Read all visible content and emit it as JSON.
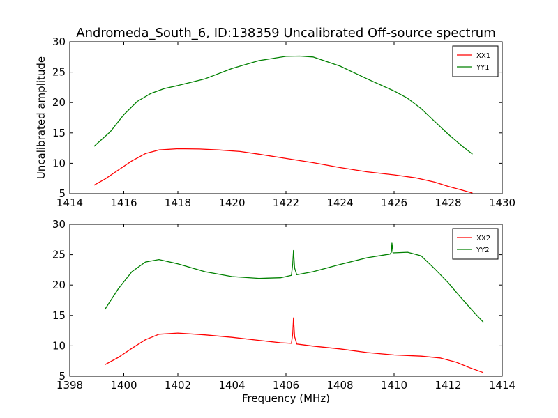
{
  "figure": {
    "title": "Andromeda_South_6, ID:138359 Uncalibrated Off-source spectrum",
    "xlabel": "Frequency (MHz)",
    "ylabel": "Uncalibrated amplitude"
  },
  "colors": {
    "red": "#ff0000",
    "green": "#008000"
  },
  "chart_data": [
    {
      "type": "line",
      "title": "Andromeda_South_6, ID:138359 Uncalibrated Off-source spectrum",
      "xlabel": "",
      "ylabel": "Uncalibrated amplitude",
      "xlim": [
        1414,
        1430
      ],
      "ylim": [
        5,
        30
      ],
      "xticks": [
        1414,
        1416,
        1418,
        1420,
        1422,
        1424,
        1426,
        1428,
        1430
      ],
      "yticks": [
        5,
        10,
        15,
        20,
        25,
        30
      ],
      "legend": "top-right",
      "series": [
        {
          "name": "XX1",
          "color": "#ff0000",
          "x": [
            1414.9,
            1415.3,
            1415.8,
            1416.3,
            1416.8,
            1417.3,
            1418.0,
            1418.8,
            1419.5,
            1420.3,
            1421.0,
            1422.0,
            1423.0,
            1424.0,
            1425.0,
            1426.0,
            1426.8,
            1427.5,
            1428.0,
            1428.5,
            1428.9
          ],
          "y": [
            6.4,
            7.4,
            8.9,
            10.4,
            11.6,
            12.2,
            12.4,
            12.35,
            12.2,
            11.95,
            11.5,
            10.8,
            10.1,
            9.3,
            8.6,
            8.1,
            7.6,
            6.9,
            6.2,
            5.6,
            5.1
          ]
        },
        {
          "name": "YY1",
          "color": "#008000",
          "x": [
            1414.9,
            1415.5,
            1416.0,
            1416.5,
            1417.0,
            1417.5,
            1418.0,
            1419.0,
            1420.0,
            1421.0,
            1422.0,
            1422.5,
            1423.0,
            1424.0,
            1425.0,
            1426.0,
            1426.5,
            1427.0,
            1427.5,
            1428.0,
            1428.5,
            1428.9
          ],
          "y": [
            12.8,
            15.2,
            18.0,
            20.2,
            21.5,
            22.3,
            22.8,
            23.9,
            25.6,
            26.9,
            27.6,
            27.65,
            27.5,
            26.0,
            23.9,
            21.9,
            20.7,
            19.0,
            16.9,
            14.8,
            12.9,
            11.5
          ]
        }
      ]
    },
    {
      "type": "line",
      "title": "",
      "xlabel": "Frequency (MHz)",
      "ylabel": "",
      "xlim": [
        1398,
        1414
      ],
      "ylim": [
        5,
        30
      ],
      "xticks": [
        1398,
        1400,
        1402,
        1404,
        1406,
        1408,
        1410,
        1412,
        1414
      ],
      "yticks": [
        5,
        10,
        15,
        20,
        25,
        30
      ],
      "legend": "top-right",
      "series": [
        {
          "name": "XX2",
          "color": "#ff0000",
          "x": [
            1399.3,
            1399.8,
            1400.3,
            1400.8,
            1401.3,
            1402.0,
            1403.0,
            1404.0,
            1405.0,
            1405.8,
            1406.2,
            1406.25,
            1406.28,
            1406.32,
            1406.4,
            1407.0,
            1408.0,
            1409.0,
            1410.0,
            1411.0,
            1411.7,
            1412.3,
            1412.8,
            1413.3
          ],
          "y": [
            6.9,
            8.1,
            9.6,
            11.0,
            11.9,
            12.1,
            11.8,
            11.4,
            10.9,
            10.5,
            10.4,
            12.0,
            14.6,
            11.5,
            10.3,
            9.95,
            9.5,
            8.9,
            8.5,
            8.3,
            8.0,
            7.3,
            6.4,
            5.6
          ]
        },
        {
          "name": "YY2",
          "color": "#008000",
          "x": [
            1399.3,
            1399.8,
            1400.3,
            1400.8,
            1401.3,
            1402.0,
            1403.0,
            1404.0,
            1405.0,
            1405.8,
            1406.2,
            1406.25,
            1406.28,
            1406.32,
            1406.4,
            1407.0,
            1408.0,
            1409.0,
            1409.85,
            1409.9,
            1409.92,
            1409.96,
            1410.5,
            1411.0,
            1411.5,
            1412.0,
            1412.5,
            1413.0,
            1413.3
          ],
          "y": [
            16.0,
            19.4,
            22.2,
            23.8,
            24.2,
            23.5,
            22.2,
            21.4,
            21.1,
            21.2,
            21.6,
            23.5,
            25.7,
            22.8,
            21.7,
            22.2,
            23.4,
            24.5,
            25.1,
            25.4,
            26.9,
            25.3,
            25.4,
            24.8,
            22.7,
            20.4,
            17.8,
            15.3,
            13.9
          ]
        }
      ]
    }
  ]
}
